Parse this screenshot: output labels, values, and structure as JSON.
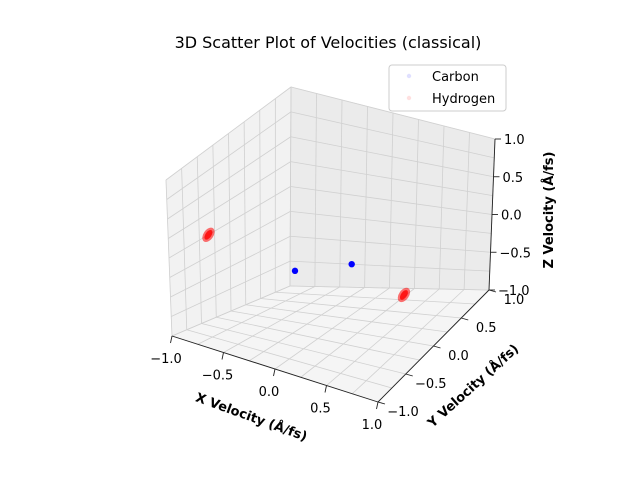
{
  "chart_data": {
    "type": "scatter",
    "projection": "3d",
    "title": "3D Scatter Plot of Velocities (classical)",
    "xlabel": "X Velocity (Å/fs)",
    "ylabel": "Y Velocity (Å/fs)",
    "zlabel": "Z Velocity (Å/fs)",
    "xlim": [
      -1.0,
      1.0
    ],
    "ylim": [
      -1.0,
      1.0
    ],
    "zlim": [
      -1.0,
      1.0
    ],
    "xticks": [
      "−1.0",
      "−0.5",
      "0.0",
      "0.5",
      "1.0"
    ],
    "yticks": [
      "−1.0",
      "−0.5",
      "0.0",
      "0.5",
      "1.0"
    ],
    "zticks": [
      "−1.0",
      "−0.5",
      "0.0",
      "0.5",
      "1.0"
    ],
    "grid": true,
    "legend": {
      "placement": "upper-right",
      "entries": [
        "Carbon",
        "Hydrogen"
      ]
    },
    "series": [
      {
        "name": "Carbon",
        "color": "#0000ff",
        "points": [
          [
            -0.05,
            -0.55,
            0.0
          ],
          [
            0.3,
            -0.2,
            0.0
          ]
        ]
      },
      {
        "name": "Hydrogen",
        "color": "#ff0000",
        "points": [
          [
            -0.72,
            -0.82,
            0.33
          ],
          [
            0.58,
            0.22,
            -0.58
          ]
        ]
      }
    ]
  }
}
